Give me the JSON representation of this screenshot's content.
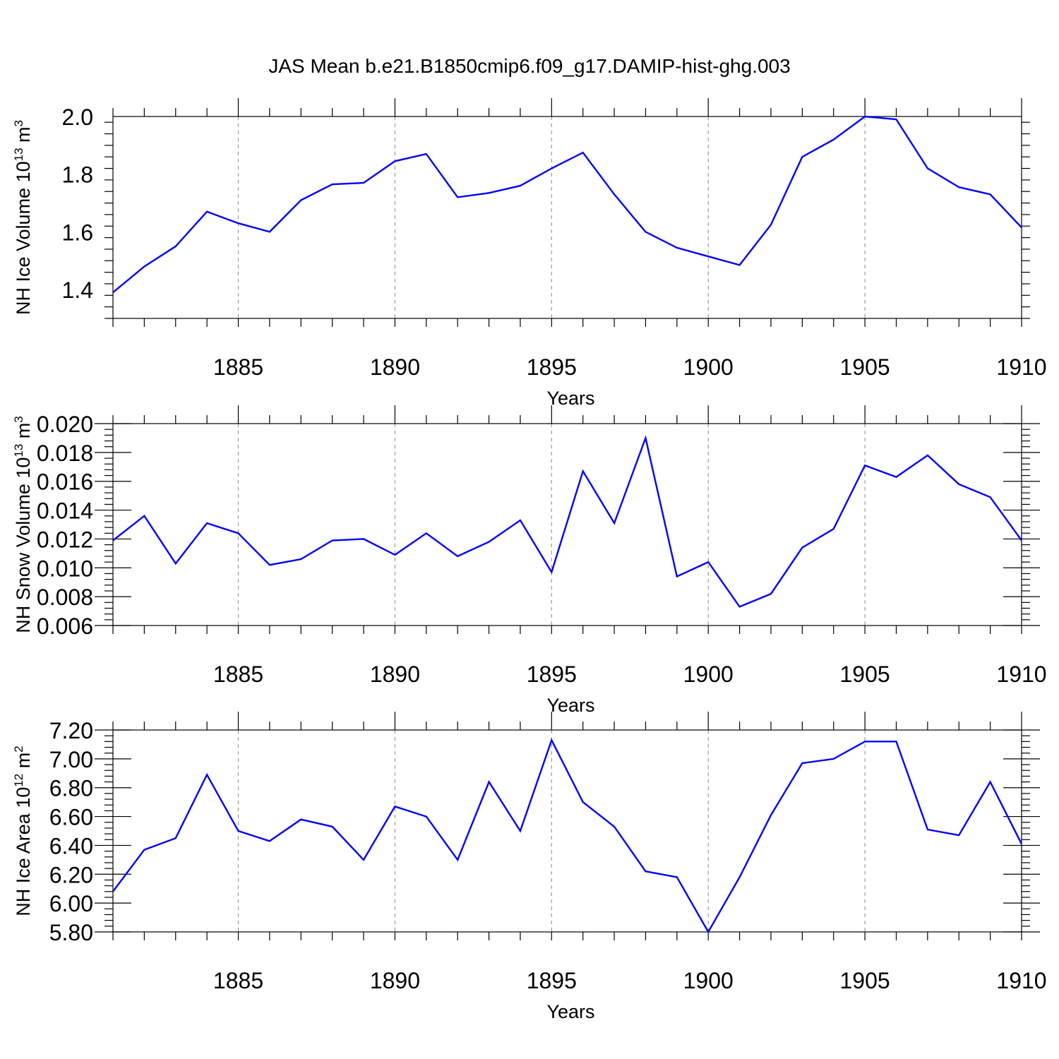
{
  "figure_title": "JAS Mean b.e21.B1850cmip6.f09_g17.DAMIP-hist-ghg.003",
  "colors": {
    "line": "#0000ff",
    "grid": "#999999",
    "axis": "#000000"
  },
  "chart_data": [
    {
      "type": "line",
      "title": "JAS Mean b.e21.B1850cmip6.f09_g17.DAMIP-hist-ghg.003",
      "xlabel": "Years",
      "ylabel_main": "NH Ice Volume 10",
      "ylabel_sup": "13",
      "ylabel_unit": " m",
      "ylabel_unit_sup": "3",
      "xlim": [
        1881,
        1910
      ],
      "ylim": [
        1.3,
        2.0
      ],
      "xticks": [
        1885,
        1890,
        1895,
        1900,
        1905,
        1910
      ],
      "xtick_labels": [
        "1885",
        "1890",
        "1895",
        "1900",
        "1905",
        "1910"
      ],
      "yticks": [
        1.4,
        1.6,
        1.8,
        2.0
      ],
      "ytick_labels": [
        "1.4",
        "1.6",
        "1.8",
        "2.0"
      ],
      "grid": "vertical dashed at major x ticks",
      "series": [
        {
          "name": "NH Ice Volume",
          "x": [
            1881,
            1882,
            1883,
            1884,
            1885,
            1886,
            1887,
            1888,
            1889,
            1890,
            1891,
            1892,
            1893,
            1894,
            1895,
            1896,
            1897,
            1898,
            1899,
            1900,
            1901,
            1902,
            1903,
            1904,
            1905,
            1906,
            1907,
            1908,
            1909,
            1910
          ],
          "values": [
            1.39,
            1.48,
            1.55,
            1.67,
            1.63,
            1.6,
            1.71,
            1.765,
            1.77,
            1.845,
            1.87,
            1.72,
            1.735,
            1.76,
            1.82,
            1.875,
            1.73,
            1.6,
            1.545,
            1.515,
            1.485,
            1.625,
            1.86,
            1.92,
            2.0,
            1.99,
            1.82,
            1.755,
            1.73,
            1.615
          ]
        }
      ]
    },
    {
      "type": "line",
      "xlabel": "Years",
      "ylabel_main": "NH Snow Volume 10",
      "ylabel_sup": "13",
      "ylabel_unit": " m",
      "ylabel_unit_sup": "3",
      "xlim": [
        1881,
        1910
      ],
      "ylim": [
        0.006,
        0.02
      ],
      "xticks": [
        1885,
        1890,
        1895,
        1900,
        1905,
        1910
      ],
      "xtick_labels": [
        "1885",
        "1890",
        "1895",
        "1900",
        "1905",
        "1910"
      ],
      "yticks": [
        0.006,
        0.008,
        0.01,
        0.012,
        0.014,
        0.016,
        0.018,
        0.02
      ],
      "ytick_labels": [
        "0.006",
        "0.008",
        "0.010",
        "0.012",
        "0.014",
        "0.016",
        "0.018",
        "0.020"
      ],
      "grid": "vertical dashed at major x ticks",
      "series": [
        {
          "name": "NH Snow Volume",
          "x": [
            1881,
            1882,
            1883,
            1884,
            1885,
            1886,
            1887,
            1888,
            1889,
            1890,
            1891,
            1892,
            1893,
            1894,
            1895,
            1896,
            1897,
            1898,
            1899,
            1900,
            1901,
            1902,
            1903,
            1904,
            1905,
            1906,
            1907,
            1908,
            1909,
            1910
          ],
          "values": [
            0.0119,
            0.0136,
            0.0103,
            0.0131,
            0.0124,
            0.0102,
            0.0106,
            0.0119,
            0.012,
            0.0109,
            0.0124,
            0.0108,
            0.0118,
            0.0133,
            0.0097,
            0.0167,
            0.0131,
            0.019,
            0.0094,
            0.0104,
            0.0073,
            0.0082,
            0.0114,
            0.0127,
            0.0171,
            0.0163,
            0.0178,
            0.0158,
            0.0149,
            0.0119
          ]
        }
      ]
    },
    {
      "type": "line",
      "xlabel": "Years",
      "ylabel_main": "NH Ice Area 10",
      "ylabel_sup": "12",
      "ylabel_unit": " m",
      "ylabel_unit_sup": "2",
      "xlim": [
        1881,
        1910
      ],
      "ylim": [
        5.8,
        7.2
      ],
      "xticks": [
        1885,
        1890,
        1895,
        1900,
        1905,
        1910
      ],
      "xtick_labels": [
        "1885",
        "1890",
        "1895",
        "1900",
        "1905",
        "1910"
      ],
      "yticks": [
        5.8,
        6.0,
        6.2,
        6.4,
        6.6,
        6.8,
        7.0,
        7.2
      ],
      "ytick_labels": [
        "5.80",
        "6.00",
        "6.20",
        "6.40",
        "6.60",
        "6.80",
        "7.00",
        "7.20"
      ],
      "grid": "vertical dashed at major x ticks",
      "series": [
        {
          "name": "NH Ice Area",
          "x": [
            1881,
            1882,
            1883,
            1884,
            1885,
            1886,
            1887,
            1888,
            1889,
            1890,
            1891,
            1892,
            1893,
            1894,
            1895,
            1896,
            1897,
            1898,
            1899,
            1900,
            1901,
            1902,
            1903,
            1904,
            1905,
            1906,
            1907,
            1908,
            1909,
            1910
          ],
          "values": [
            6.08,
            6.37,
            6.45,
            6.89,
            6.5,
            6.43,
            6.58,
            6.53,
            6.3,
            6.67,
            6.6,
            6.3,
            6.84,
            6.5,
            7.13,
            6.7,
            6.53,
            6.22,
            6.18,
            5.8,
            6.18,
            6.61,
            6.97,
            7.0,
            7.12,
            7.12,
            6.51,
            6.47,
            6.84,
            6.41
          ]
        }
      ]
    }
  ]
}
